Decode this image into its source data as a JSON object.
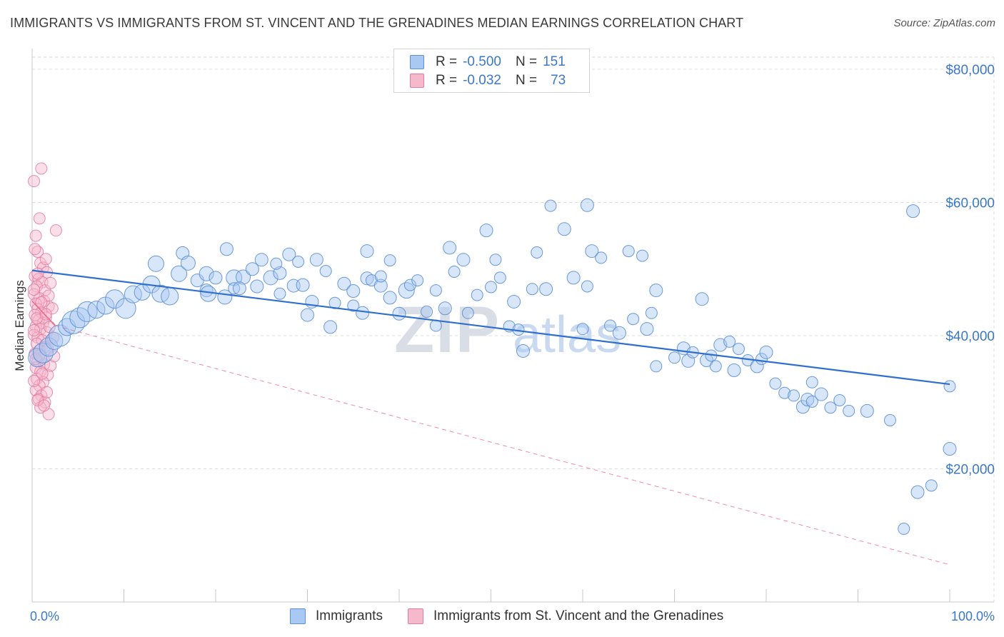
{
  "title": "IMMIGRANTS VS IMMIGRANTS FROM ST. VINCENT AND THE GRENADINES MEDIAN EARNINGS CORRELATION CHART",
  "source": "Source: ZipAtlas.com",
  "watermark": {
    "zip": "ZIP",
    "atlas": "atlas"
  },
  "legend": {
    "rows": [
      {
        "r_label": "R =",
        "r_value": "-0.500",
        "n_label": "N =",
        "n_value": "151"
      },
      {
        "r_label": "R =",
        "r_value": "-0.032",
        "n_label": "N =",
        "n_value": "73"
      }
    ]
  },
  "bottom_legend": [
    "Immigrants",
    "Immigrants from St. Vincent and the Grenadines"
  ],
  "colors": {
    "blue_fill": "#a9c8f2",
    "blue_stroke": "#5b8fd6",
    "blue_line": "#2f6fd0",
    "pink_fill": "#f6b9cc",
    "pink_stroke": "#e37aa0",
    "pink_line": "#e8708f",
    "grid": "#dddddd",
    "tick_text": "#3b78c8"
  },
  "chart_data": {
    "type": "scatter",
    "ylabel": "Median Earnings",
    "xlabel": "",
    "x_tick_labels": [
      "0.0%",
      "100.0%"
    ],
    "y_ticks": [
      20000,
      40000,
      60000,
      80000
    ],
    "y_tick_labels": [
      "$20,000",
      "$40,000",
      "$60,000",
      "$80,000"
    ],
    "xlim": [
      0,
      100
    ],
    "ylim": [
      0,
      82000
    ],
    "grid": true,
    "series": [
      {
        "name": "Immigrants",
        "color": "#5b8fd6",
        "trend": {
          "x": [
            0,
            100
          ],
          "y": [
            49800,
            32700
          ]
        },
        "points": [
          [
            0.6,
            36700,
            13
          ],
          [
            1.2,
            37400,
            14
          ],
          [
            1.8,
            38300,
            13
          ],
          [
            2.4,
            39200,
            12
          ],
          [
            3.0,
            40000,
            15
          ],
          [
            3.8,
            41300,
            12
          ],
          [
            4.5,
            42000,
            16
          ],
          [
            5.2,
            42700,
            14
          ],
          [
            6.0,
            43600,
            14
          ],
          [
            7.0,
            43900,
            12
          ],
          [
            8.0,
            44500,
            12
          ],
          [
            9.0,
            45500,
            13
          ],
          [
            10.2,
            44100,
            14
          ],
          [
            11.0,
            46200,
            12
          ],
          [
            12.0,
            46500,
            11
          ],
          [
            13.0,
            47700,
            12
          ],
          [
            14.0,
            46300,
            12
          ],
          [
            15.0,
            45900,
            12
          ],
          [
            13.5,
            50800,
            11
          ],
          [
            16.0,
            49300,
            11
          ],
          [
            16.4,
            52400,
            9
          ],
          [
            17.0,
            50900,
            10
          ],
          [
            18.0,
            48300,
            9
          ],
          [
            19.0,
            49300,
            10
          ],
          [
            19.0,
            46800,
            9
          ],
          [
            20.0,
            48700,
            9
          ],
          [
            19.2,
            46300,
            11
          ],
          [
            21.0,
            45800,
            10
          ],
          [
            21.2,
            53000,
            9
          ],
          [
            22.0,
            48700,
            11
          ],
          [
            22.0,
            47100,
            8
          ],
          [
            23.0,
            48800,
            10
          ],
          [
            24.0,
            50000,
            9
          ],
          [
            22.6,
            47100,
            9
          ],
          [
            24.5,
            47400,
            9
          ],
          [
            25.0,
            51400,
            9
          ],
          [
            26.0,
            48700,
            10
          ],
          [
            27.0,
            49400,
            9
          ],
          [
            27.0,
            46300,
            8
          ],
          [
            26.6,
            50800,
            8
          ],
          [
            28.0,
            52200,
            9
          ],
          [
            29.0,
            51100,
            8
          ],
          [
            28.5,
            47500,
            9
          ],
          [
            29.5,
            47600,
            9
          ],
          [
            30.0,
            43100,
            9
          ],
          [
            30.5,
            45100,
            9
          ],
          [
            31.0,
            51400,
            9
          ],
          [
            32.0,
            49700,
            8
          ],
          [
            32.5,
            41300,
            9
          ],
          [
            33.0,
            44900,
            8
          ],
          [
            34.0,
            47800,
            9
          ],
          [
            35.0,
            46700,
            9
          ],
          [
            35.0,
            44500,
            8
          ],
          [
            36.0,
            43400,
            9
          ],
          [
            36.5,
            48600,
            9
          ],
          [
            37.0,
            48300,
            8
          ],
          [
            36.5,
            52700,
            9
          ],
          [
            38.0,
            47500,
            9
          ],
          [
            39.0,
            45700,
            9
          ],
          [
            39.0,
            51300,
            8
          ],
          [
            38.0,
            48900,
            8
          ],
          [
            40.0,
            43300,
            9
          ],
          [
            40.8,
            46800,
            11
          ],
          [
            41.2,
            47600,
            8
          ],
          [
            42.0,
            48300,
            8
          ],
          [
            43.0,
            43600,
            8
          ],
          [
            44.0,
            41500,
            8
          ],
          [
            44.0,
            46800,
            8
          ],
          [
            45.0,
            44100,
            9
          ],
          [
            45.5,
            53200,
            9
          ],
          [
            46.0,
            49600,
            8
          ],
          [
            47.0,
            51400,
            9
          ],
          [
            47.5,
            43400,
            8
          ],
          [
            48.5,
            46100,
            8
          ],
          [
            49.5,
            55800,
            9
          ],
          [
            50.0,
            47300,
            8
          ],
          [
            50.5,
            51400,
            8
          ],
          [
            51.0,
            48700,
            8
          ],
          [
            52.0,
            41400,
            8
          ],
          [
            52.5,
            45100,
            9
          ],
          [
            53.0,
            40900,
            8
          ],
          [
            53.5,
            37700,
            9
          ],
          [
            54.5,
            47000,
            8
          ],
          [
            55.0,
            52500,
            8
          ],
          [
            56.0,
            47000,
            9
          ],
          [
            56.5,
            59500,
            8
          ],
          [
            58.0,
            56000,
            9
          ],
          [
            59.0,
            48700,
            9
          ],
          [
            60.0,
            41000,
            8
          ],
          [
            60.5,
            47400,
            8
          ],
          [
            61.0,
            52700,
            9
          ],
          [
            62.0,
            51700,
            8
          ],
          [
            63.0,
            41500,
            8
          ],
          [
            64.0,
            40400,
            9
          ],
          [
            65.0,
            52700,
            8
          ],
          [
            65.5,
            42500,
            8
          ],
          [
            66.5,
            52000,
            8
          ],
          [
            67.0,
            41000,
            9
          ],
          [
            67.5,
            43400,
            8
          ],
          [
            68.0,
            35400,
            8
          ],
          [
            68.0,
            46800,
            9
          ],
          [
            70.0,
            36700,
            8
          ],
          [
            71.0,
            38100,
            9
          ],
          [
            71.5,
            36200,
            9
          ],
          [
            72.0,
            37500,
            8
          ],
          [
            73.0,
            45500,
            9
          ],
          [
            73.5,
            36300,
            9
          ],
          [
            74.0,
            37000,
            8
          ],
          [
            74.5,
            35400,
            8
          ],
          [
            75.0,
            38600,
            9
          ],
          [
            76.0,
            39100,
            8
          ],
          [
            76.5,
            34800,
            9
          ],
          [
            77.0,
            38000,
            8
          ],
          [
            78.0,
            36300,
            8
          ],
          [
            79.0,
            35400,
            9
          ],
          [
            79.5,
            36500,
            8
          ],
          [
            80.0,
            37500,
            9
          ],
          [
            81.0,
            32800,
            8
          ],
          [
            82.0,
            31400,
            8
          ],
          [
            83.0,
            31000,
            8
          ],
          [
            84.0,
            29300,
            9
          ],
          [
            84.5,
            30400,
            9
          ],
          [
            85.0,
            33000,
            8
          ],
          [
            85.0,
            30100,
            8
          ],
          [
            86.0,
            31200,
            9
          ],
          [
            87.0,
            29200,
            8
          ],
          [
            88.0,
            30300,
            8
          ],
          [
            89.0,
            28700,
            8
          ],
          [
            91.0,
            28700,
            9
          ],
          [
            93.5,
            27300,
            8
          ],
          [
            96.0,
            58700,
            9
          ],
          [
            96.5,
            16500,
            9
          ],
          [
            98.0,
            17500,
            8
          ],
          [
            100.0,
            23000,
            9
          ],
          [
            60.5,
            59600,
            9
          ],
          [
            95.0,
            11000,
            8
          ],
          [
            100.0,
            32400,
            8
          ]
        ]
      },
      {
        "name": "Immigrants from St. Vincent and the Grenadines",
        "color": "#e37aa0",
        "trend": {
          "x": [
            0,
            2.5,
            100
          ],
          "y": [
            45200,
            41500,
            5600
          ]
        },
        "points": [
          [
            0.2,
            63200,
            8
          ],
          [
            1.0,
            65100,
            8
          ],
          [
            0.8,
            57600,
            8
          ],
          [
            2.6,
            55800,
            8
          ],
          [
            0.4,
            55000,
            8
          ],
          [
            0.6,
            52600,
            8
          ],
          [
            0.9,
            50900,
            8
          ],
          [
            1.2,
            50200,
            8
          ],
          [
            1.6,
            49500,
            8
          ],
          [
            0.3,
            48900,
            8
          ],
          [
            0.7,
            48500,
            8
          ],
          [
            1.1,
            48000,
            8
          ],
          [
            0.5,
            47400,
            8
          ],
          [
            1.4,
            46800,
            8
          ],
          [
            0.2,
            46200,
            8
          ],
          [
            0.8,
            45600,
            8
          ],
          [
            1.3,
            45200,
            8
          ],
          [
            0.4,
            44800,
            8
          ],
          [
            1.8,
            44400,
            8
          ],
          [
            0.6,
            44000,
            8
          ],
          [
            1.0,
            43500,
            8
          ],
          [
            0.3,
            43100,
            8
          ],
          [
            1.5,
            42700,
            8
          ],
          [
            0.7,
            42300,
            8
          ],
          [
            1.2,
            41900,
            8
          ],
          [
            0.4,
            41400,
            8
          ],
          [
            0.9,
            41000,
            8
          ],
          [
            1.6,
            40500,
            8
          ],
          [
            0.2,
            40100,
            8
          ],
          [
            0.6,
            39700,
            8
          ],
          [
            1.1,
            39300,
            8
          ],
          [
            0.5,
            38800,
            8
          ],
          [
            1.4,
            38300,
            8
          ],
          [
            0.8,
            37800,
            8
          ],
          [
            0.3,
            37300,
            8
          ],
          [
            1.0,
            36700,
            8
          ],
          [
            0.6,
            36200,
            8
          ],
          [
            1.3,
            35700,
            8
          ],
          [
            0.4,
            35200,
            8
          ],
          [
            0.9,
            34600,
            8
          ],
          [
            1.7,
            34100,
            8
          ],
          [
            0.5,
            33500,
            8
          ],
          [
            1.2,
            33000,
            8
          ],
          [
            0.8,
            32500,
            8
          ],
          [
            0.4,
            31800,
            8
          ],
          [
            1.0,
            31000,
            8
          ],
          [
            0.7,
            30500,
            8
          ],
          [
            1.4,
            30000,
            8
          ],
          [
            0.9,
            29200,
            8
          ],
          [
            1.8,
            28200,
            8
          ],
          [
            0.3,
            53000,
            8
          ],
          [
            1.5,
            51500,
            8
          ],
          [
            0.6,
            49300,
            8
          ],
          [
            2.0,
            47900,
            8
          ],
          [
            0.2,
            46900,
            8
          ],
          [
            1.8,
            46000,
            8
          ],
          [
            1.0,
            45000,
            8
          ],
          [
            2.2,
            44100,
            8
          ],
          [
            0.5,
            42600,
            8
          ],
          [
            1.9,
            41300,
            8
          ],
          [
            0.2,
            40800,
            8
          ],
          [
            2.3,
            39700,
            8
          ],
          [
            1.7,
            38000,
            8
          ],
          [
            0.4,
            36500,
            8
          ],
          [
            2.0,
            35500,
            8
          ],
          [
            1.1,
            34300,
            8
          ],
          [
            0.2,
            33200,
            8
          ],
          [
            1.6,
            31500,
            8
          ],
          [
            0.6,
            30300,
            8
          ],
          [
            1.3,
            29500,
            8
          ],
          [
            2.4,
            36900,
            8
          ],
          [
            0.8,
            37000,
            8
          ],
          [
            1.5,
            43200,
            8
          ]
        ]
      }
    ]
  }
}
